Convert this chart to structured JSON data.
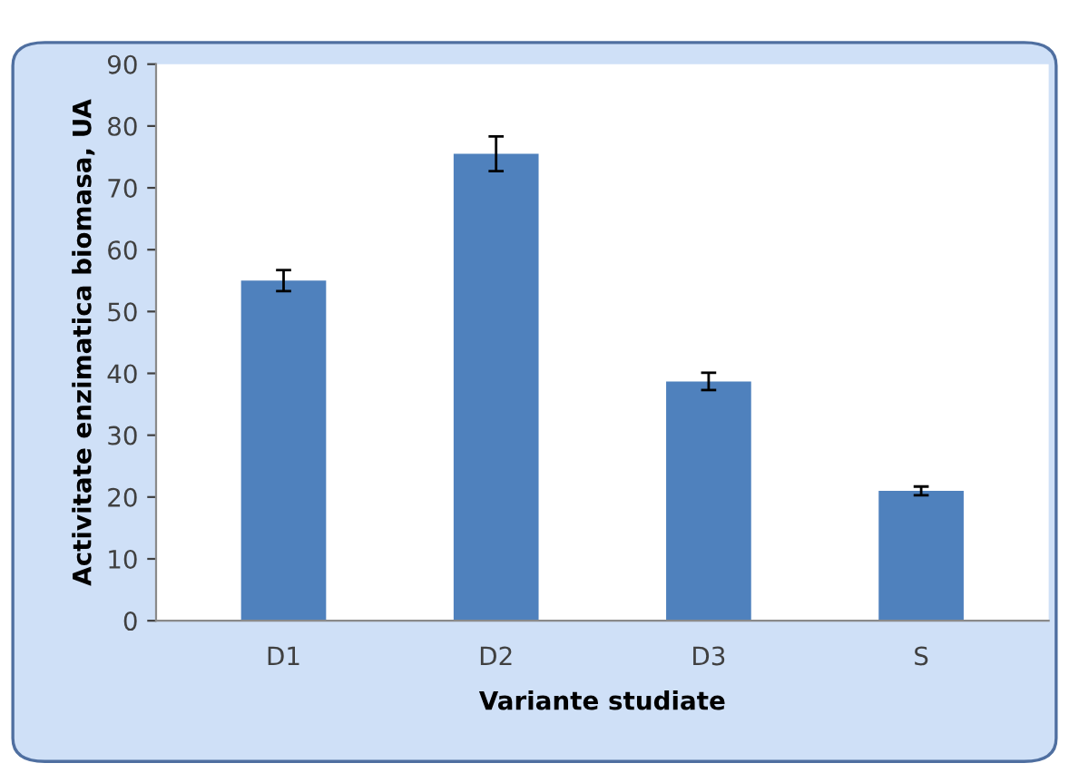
{
  "chart_data": {
    "type": "bar",
    "xlabel": "Variante studiate",
    "ylabel": "Activitate enzimatica biomasa, UA",
    "categories": [
      "D1",
      "D2",
      "D3",
      "S"
    ],
    "values": [
      55,
      75.5,
      38.7,
      21
    ],
    "errors": [
      1.7,
      2.8,
      1.4,
      0.7
    ],
    "color": "#4f81bd",
    "ylim": [
      0,
      90
    ],
    "yticks": [
      0,
      10,
      20,
      30,
      40,
      50,
      60,
      70,
      80,
      90
    ],
    "grid": false
  }
}
